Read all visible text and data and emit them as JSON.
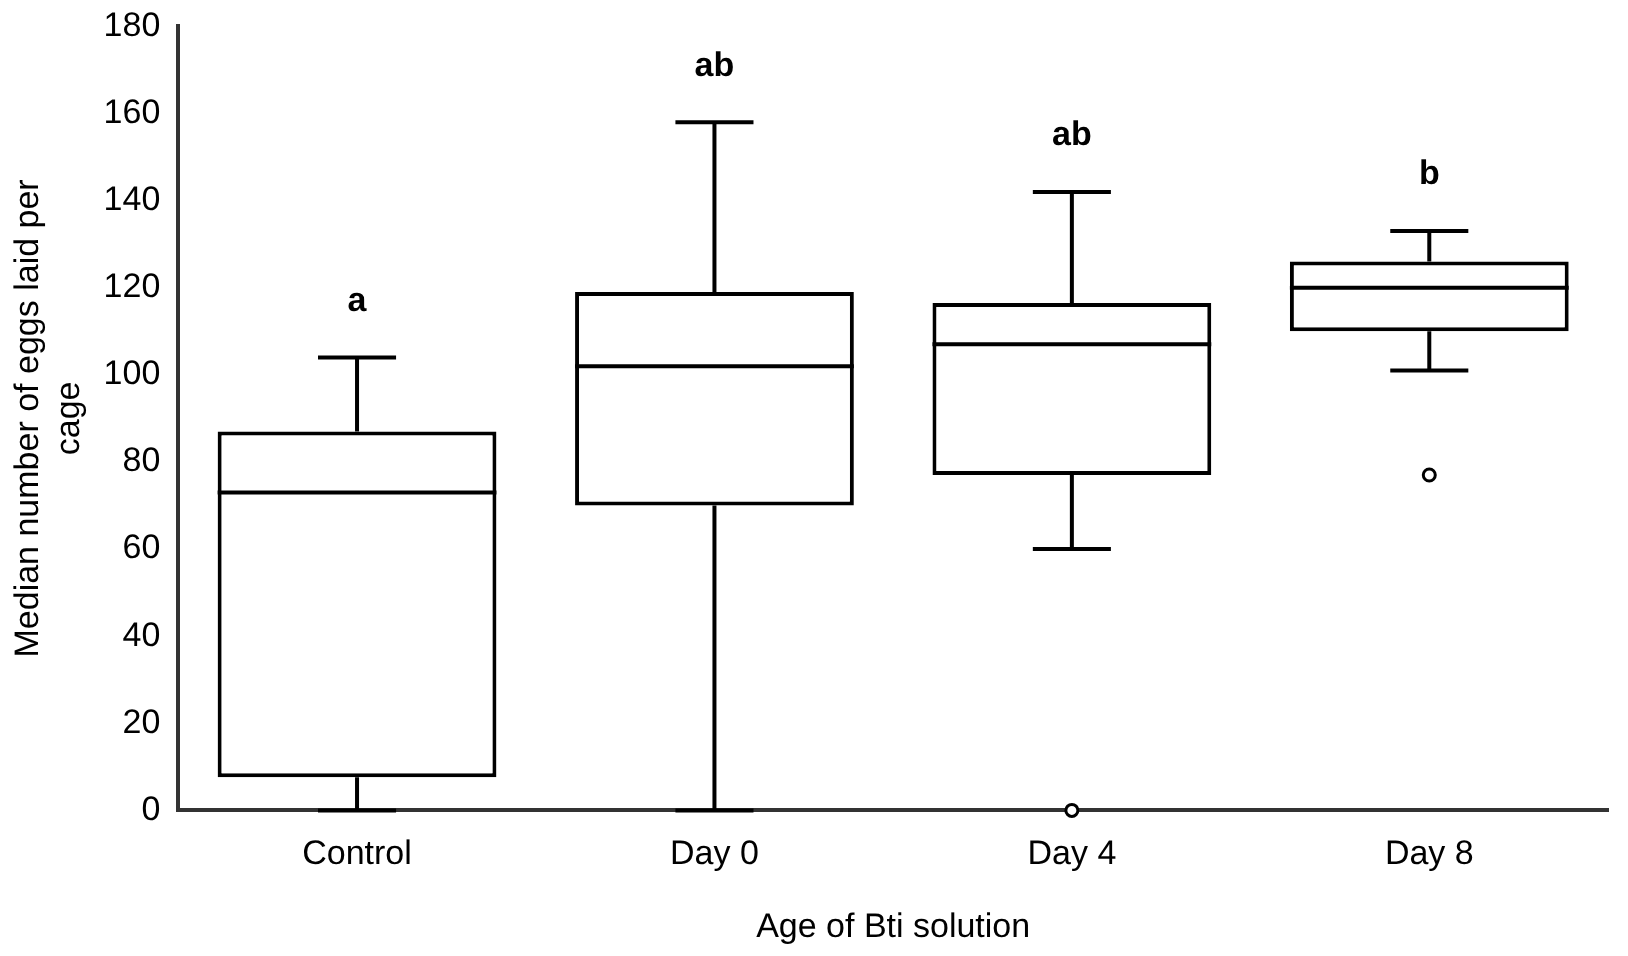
{
  "chart_data": {
    "type": "box",
    "xlabel": "Age of Bti solution",
    "ylabel": "Median number of eggs laid per cage",
    "categories": [
      "Control",
      "Day 0",
      "Day 4",
      "Day 8"
    ],
    "boxes": [
      {
        "low": 0,
        "q1": 7.6,
        "median": 73,
        "q3": 87,
        "high": 104
      },
      {
        "low": 0,
        "q1": 70,
        "median": 102,
        "q3": 119,
        "high": 158
      },
      {
        "low": 60,
        "q1": 77,
        "median": 107,
        "q3": 116.5,
        "high": 142,
        "outliers": [
          0
        ]
      },
      {
        "low": 101,
        "q1": 110,
        "median": 120,
        "q3": 126,
        "high": 133,
        "outliers": [
          77
        ]
      }
    ],
    "color": "#000000",
    "ylim": [
      0,
      180
    ],
    "yticks": [
      0,
      20,
      40,
      60,
      80,
      100,
      120,
      140,
      160,
      180
    ],
    "grid": false,
    "legend": false,
    "annotations": [
      "a",
      "ab",
      "ab",
      "b"
    ]
  }
}
